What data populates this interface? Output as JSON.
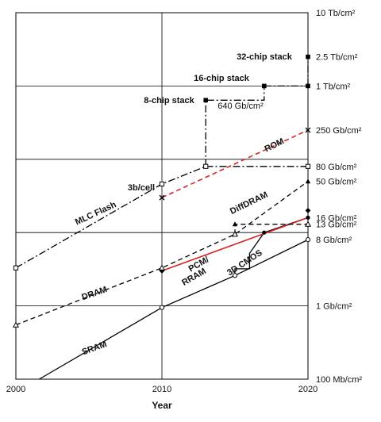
{
  "chart_data": {
    "type": "line",
    "xlabel": "Year",
    "x_ticks": [
      "2000",
      "2010",
      "2020"
    ],
    "xlim": [
      2000,
      2020
    ],
    "y_scale": "log",
    "ylim_gb_per_cm2": [
      0.1,
      10000
    ],
    "y_ticks": [
      {
        "label": "100 Mb/cm²",
        "value": 0.1
      },
      {
        "label": "1 Gb/cm²",
        "value": 1
      },
      {
        "label": "8 Gb/cm²",
        "value": 8
      },
      {
        "label": "13 Gb/cm²",
        "value": 13
      },
      {
        "label": "16 Gb/cm²",
        "value": 16
      },
      {
        "label": "50 Gb/cm²",
        "value": 50
      },
      {
        "label": "80 Gb/cm²",
        "value": 80
      },
      {
        "label": "250 Gb/cm²",
        "value": 250
      },
      {
        "label": "1 Tb/cm²",
        "value": 1000
      },
      {
        "label": "2.5 Tb/cm²",
        "value": 2500
      },
      {
        "label": "10 Tb/cm²",
        "value": 10000
      }
    ],
    "series": [
      {
        "name": "SRAM",
        "style": "solid",
        "color": "#000000",
        "marker": "open-circle",
        "points": [
          [
            2001.6,
            0.1
          ],
          [
            2010,
            0.95
          ],
          [
            2015,
            2.6
          ],
          [
            2020,
            8
          ]
        ]
      },
      {
        "name": "3D CMOS",
        "style": "solid",
        "color": "#000000",
        "marker": "filled-circle",
        "points": [
          [
            2015,
            2.6
          ],
          [
            2015,
            3.2
          ],
          [
            2016,
            3.2
          ],
          [
            2016,
            5.2
          ],
          [
            2017,
            10
          ],
          [
            2020,
            16
          ]
        ]
      },
      {
        "name": "PCM/ RRAM",
        "style": "solid",
        "color": "#d62728",
        "points": [
          [
            2010,
            3.0
          ],
          [
            2020,
            16
          ]
        ]
      },
      {
        "name": "DRAM",
        "style": "dashed",
        "color": "#000000",
        "marker": "open-triangle",
        "points": [
          [
            2000,
            0.55
          ],
          [
            2010,
            3.3
          ],
          [
            2015,
            9.5
          ],
          [
            2020,
            50
          ]
        ]
      },
      {
        "name": "DiffDRAM",
        "style": "dashed",
        "color": "#000000",
        "points": [
          [
            2015,
            9.5
          ],
          [
            2015,
            13
          ],
          [
            2020,
            13
          ]
        ]
      },
      {
        "name": "MLC Flash",
        "style": "dash-dot",
        "color": "#000000",
        "marker": "open-square",
        "points": [
          [
            2000,
            3.3
          ],
          [
            2010,
            46
          ],
          [
            2013,
            80
          ],
          [
            2020,
            80
          ]
        ]
      },
      {
        "name": "ROM",
        "style": "dashed",
        "color": "#d62728",
        "marker": "x",
        "points": [
          [
            2010,
            30
          ],
          [
            2020,
            250
          ]
        ]
      },
      {
        "name": "8-chip stack",
        "style": "dash-dot",
        "color": "#000000",
        "marker": "filled-square",
        "points": [
          [
            2013,
            80
          ],
          [
            2013,
            640
          ],
          [
            2017,
            640
          ],
          [
            2017,
            1000
          ]
        ]
      },
      {
        "name": "16-chip stack",
        "style": "dash-dot",
        "color": "#000000",
        "marker": "filled-square",
        "points": [
          [
            2017,
            1000
          ],
          [
            2020,
            1000
          ]
        ]
      },
      {
        "name": "32-chip stack",
        "style": "dash-dot",
        "color": "#000000",
        "marker": "filled-square",
        "points": [
          [
            2020,
            1000
          ],
          [
            2020,
            2500
          ]
        ]
      }
    ],
    "annotations": [
      {
        "text": "3b/cell"
      },
      {
        "text": "640 Gb/cm²"
      }
    ],
    "grid": true
  }
}
